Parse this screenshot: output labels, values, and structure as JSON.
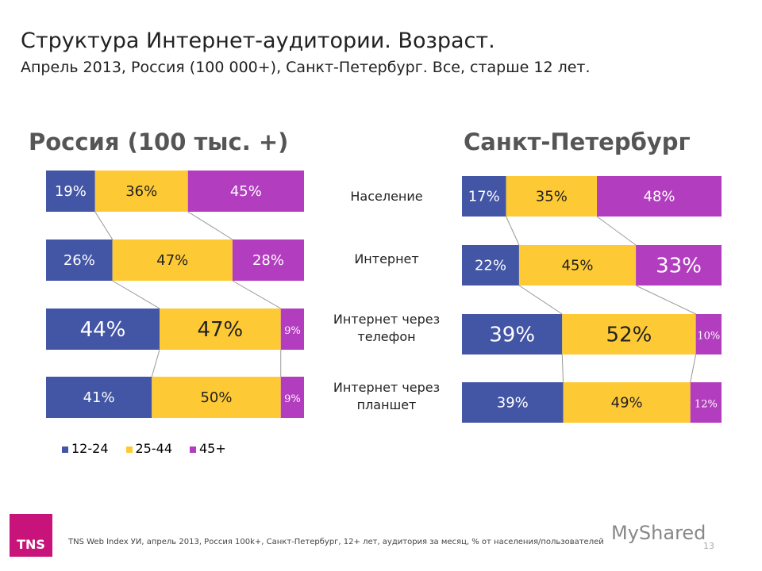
{
  "title": "Структура Интернет-аудитории. Возраст.",
  "subtitle": "Апрель 2013, Россия (100 000+), Санкт-Петербург.  Все, старше 12 лет.",
  "footer": "TNS Web Index УИ, апрель 2013, Россия 100k+,  Санкт-Петербург, 12+ лет, аудитория за месяц, % от населения/пользователей",
  "page_number": "13",
  "logo": "TNS",
  "watermark": "MyShared",
  "chart_data": [
    {
      "type": "bar",
      "stacked": "100%",
      "orientation": "horizontal",
      "title": "Россия (100 тыс. +)",
      "categories": [
        "Население",
        "Интернет",
        "Интернет через телефон",
        "Интернет через планшет"
      ],
      "series": [
        {
          "name": "12-24",
          "values": [
            19,
            26,
            44,
            41
          ],
          "color": "#4355a5"
        },
        {
          "name": "25-44",
          "values": [
            36,
            47,
            47,
            50
          ],
          "color": "#fdc935"
        },
        {
          "name": "45+",
          "values": [
            45,
            28,
            9,
            9
          ],
          "color": "#b33dbf"
        }
      ]
    },
    {
      "type": "bar",
      "stacked": "100%",
      "orientation": "horizontal",
      "title": "Санкт-Петербург",
      "categories": [
        "Население",
        "Интернет",
        "Интернет через телефон",
        "Интернет через планшет"
      ],
      "series": [
        {
          "name": "12-24",
          "values": [
            17,
            22,
            39,
            39
          ],
          "color": "#4355a5"
        },
        {
          "name": "25-44",
          "values": [
            35,
            45,
            52,
            49
          ],
          "color": "#fdc935"
        },
        {
          "name": "45+",
          "values": [
            48,
            33,
            10,
            12
          ],
          "color": "#b33dbf"
        }
      ]
    }
  ],
  "categories_display": [
    "Население",
    "Интернет",
    "Интернет через\nтелефон",
    "Интернет через\nпланшет"
  ],
  "legend": [
    "12-24",
    "25-44",
    "45+"
  ]
}
